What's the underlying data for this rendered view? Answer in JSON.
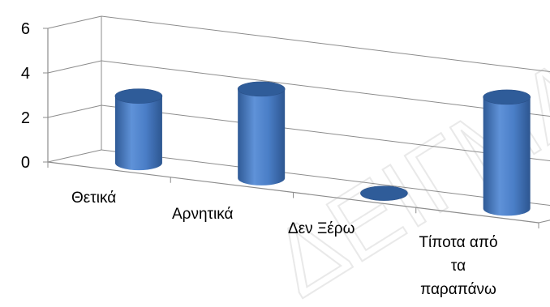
{
  "chart_data": {
    "type": "bar",
    "style": "3d-cylinder",
    "categories": [
      "Θετικά",
      "Αρνητικά",
      "Δεν Ξέρω",
      "Τίποτα από τα παραπάνω"
    ],
    "category_label_lines": [
      [
        "Θετικά"
      ],
      [
        "Αρνητικά"
      ],
      [
        "Δεν Ξέρω"
      ],
      [
        "Τίποτα από",
        "τα",
        "παραπάνω"
      ]
    ],
    "values": [
      3,
      4,
      0,
      5
    ],
    "yticks": [
      0,
      2,
      4,
      6
    ],
    "ylim": [
      0,
      6
    ],
    "grid": true,
    "legend": "none",
    "bar_color": "#4a7ec7",
    "bar_top_color": "#2f5c99"
  },
  "watermark": {
    "text": "ΔΕΙΓΜΑ"
  }
}
